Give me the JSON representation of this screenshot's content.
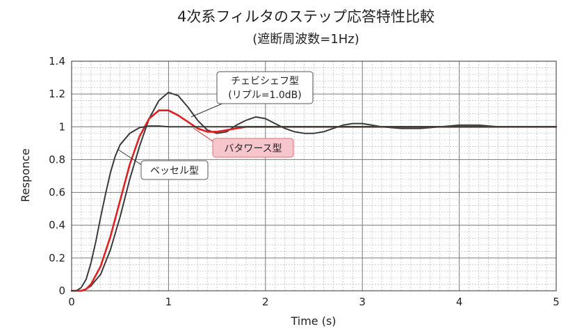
{
  "chart_data": {
    "type": "line",
    "title": "4次系フィルタのステップ応答特性比較",
    "subtitle": "(遮断周波数=1Hz)",
    "xlabel": "Time (s)",
    "ylabel": "Responce",
    "xlim": [
      0,
      5
    ],
    "ylim": [
      0,
      1.4
    ],
    "xticks": [
      "0",
      "1",
      "2",
      "3",
      "4",
      "5"
    ],
    "yticks": [
      "0",
      "0.2",
      "0.4",
      "0.6",
      "0.8",
      "1",
      "1.2",
      "1.4"
    ],
    "grid": true,
    "series": [
      {
        "name": "チェビシェフ型",
        "color": "#3a3a3a",
        "x": [
          0,
          0.1,
          0.15,
          0.2,
          0.3,
          0.4,
          0.5,
          0.6,
          0.7,
          0.8,
          0.9,
          1.0,
          1.1,
          1.2,
          1.3,
          1.4,
          1.5,
          1.6,
          1.7,
          1.8,
          1.9,
          2.0,
          2.1,
          2.2,
          2.3,
          2.4,
          2.5,
          2.6,
          2.7,
          2.8,
          2.9,
          3.0,
          3.1,
          3.2,
          3.4,
          3.6,
          3.8,
          4.0,
          4.2,
          4.4,
          4.6,
          4.8,
          5.0
        ],
        "y": [
          0,
          0,
          0.01,
          0.03,
          0.1,
          0.25,
          0.45,
          0.68,
          0.88,
          1.05,
          1.16,
          1.21,
          1.19,
          1.12,
          1.04,
          0.98,
          0.96,
          0.97,
          1.01,
          1.04,
          1.06,
          1.05,
          1.02,
          0.99,
          0.97,
          0.96,
          0.96,
          0.97,
          0.99,
          1.01,
          1.02,
          1.02,
          1.01,
          1.0,
          0.99,
          0.99,
          1.0,
          1.01,
          1.01,
          1.0,
          1.0,
          1.0,
          1.0
        ]
      },
      {
        "name": "バタワース型",
        "color": "#e02020",
        "x": [
          0,
          0.1,
          0.15,
          0.2,
          0.3,
          0.4,
          0.5,
          0.6,
          0.7,
          0.8,
          0.9,
          1.0,
          1.1,
          1.2,
          1.3,
          1.4,
          1.5,
          1.6,
          1.7,
          1.8,
          2.0,
          2.5,
          3.0,
          4.0,
          5.0
        ],
        "y": [
          0,
          0,
          0.01,
          0.04,
          0.15,
          0.33,
          0.55,
          0.77,
          0.94,
          1.05,
          1.1,
          1.1,
          1.07,
          1.03,
          0.99,
          0.97,
          0.97,
          0.98,
          0.99,
          1.0,
          1.0,
          1.0,
          1.0,
          1.0,
          1.0
        ]
      },
      {
        "name": "ベッセル型",
        "color": "#3a3a3a",
        "x": [
          0,
          0.05,
          0.1,
          0.15,
          0.2,
          0.25,
          0.3,
          0.35,
          0.4,
          0.45,
          0.5,
          0.6,
          0.7,
          0.8,
          0.9,
          1.0,
          1.2,
          1.5,
          2.0,
          3.0,
          4.0,
          5.0
        ],
        "y": [
          0,
          0.0,
          0.02,
          0.07,
          0.17,
          0.3,
          0.45,
          0.59,
          0.72,
          0.82,
          0.89,
          0.96,
          0.995,
          1.005,
          1.005,
          1.0,
          1.0,
          1.0,
          1.0,
          1.0,
          1.0,
          1.0
        ]
      }
    ],
    "annotations": {
      "chebyshev_line1": "チェビシェフ型",
      "chebyshev_line2": "(リプル=1.0dB)",
      "butterworth": "バタワース型",
      "bessel": "ベッセル型"
    }
  }
}
